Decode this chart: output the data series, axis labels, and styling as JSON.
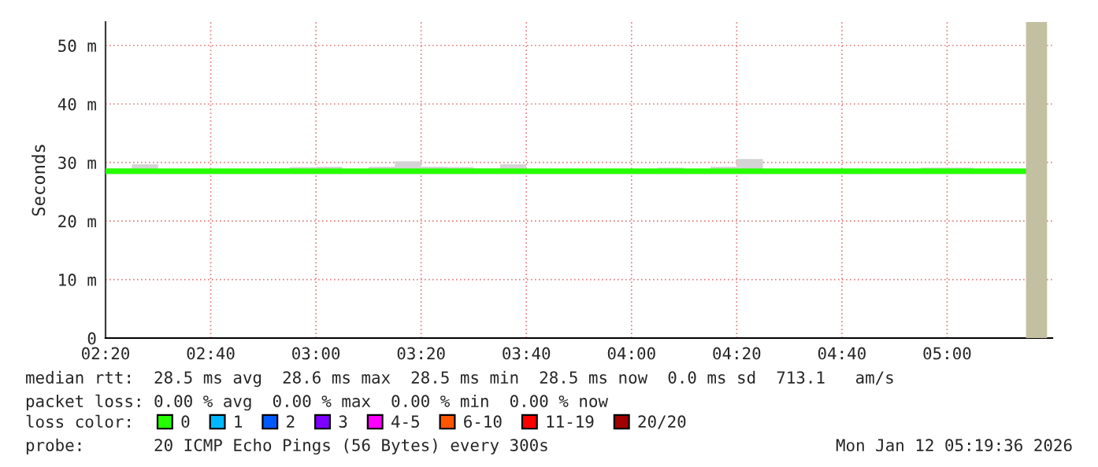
{
  "chart_data": {
    "type": "step",
    "ylabel": "Seconds",
    "x": [
      "2026-01-12T02:20",
      "2026-01-12T02:25",
      "2026-01-12T02:30",
      "2026-01-12T02:35",
      "2026-01-12T02:40",
      "2026-01-12T02:45",
      "2026-01-12T02:50",
      "2026-01-12T02:55",
      "2026-01-12T03:00",
      "2026-01-12T03:05",
      "2026-01-12T03:10",
      "2026-01-12T03:15",
      "2026-01-12T03:20",
      "2026-01-12T03:25",
      "2026-01-12T03:30",
      "2026-01-12T03:35",
      "2026-01-12T03:40",
      "2026-01-12T03:45",
      "2026-01-12T03:50",
      "2026-01-12T03:55",
      "2026-01-12T04:00",
      "2026-01-12T04:05",
      "2026-01-12T04:10",
      "2026-01-12T04:15",
      "2026-01-12T04:20",
      "2026-01-12T04:25",
      "2026-01-12T04:30",
      "2026-01-12T04:35",
      "2026-01-12T04:40",
      "2026-01-12T04:45",
      "2026-01-12T04:50",
      "2026-01-12T04:55",
      "2026-01-12T05:00",
      "2026-01-12T05:05",
      "2026-01-12T05:10",
      "2026-01-12T05:15"
    ],
    "series": [
      {
        "name": "0",
        "color": "#26ff00",
        "values": [
          28.5,
          28.5,
          28.5,
          28.5,
          28.5,
          28.5,
          28.5,
          28.5,
          28.5,
          28.5,
          28.5,
          28.5,
          28.5,
          28.5,
          28.5,
          28.5,
          28.5,
          28.5,
          28.5,
          28.5,
          28.5,
          28.5,
          28.5,
          28.5,
          28.5,
          28.5,
          28.5,
          28.5,
          28.5,
          28.5,
          28.5,
          28.5,
          28.5,
          28.5,
          28.5,
          28.5
        ],
        "lower": [
          28,
          28,
          28,
          28,
          28,
          28,
          28,
          28,
          28,
          28,
          28,
          28,
          28,
          28,
          28,
          28,
          28,
          28,
          28,
          28,
          28,
          28,
          28,
          28,
          28,
          28,
          28,
          28,
          28,
          28,
          28,
          28,
          28,
          28,
          28,
          28
        ],
        "upper": [
          29.0,
          29.7,
          28.8,
          28.8,
          28.8,
          28.8,
          29.0,
          29.2,
          29.3,
          28.8,
          29.3,
          30.2,
          29.3,
          29.2,
          29.0,
          29.7,
          28.8,
          28.8,
          28.8,
          28.8,
          28.8,
          29.1,
          28.8,
          29.3,
          30.6,
          28.8,
          28.8,
          28.8,
          28.9,
          28.8,
          28.8,
          29.1,
          29.1,
          28.8,
          28.8,
          28.8
        ]
      },
      {
        "name": "1",
        "color": "#00b8ff",
        "values": [
          null,
          null,
          null,
          null,
          null,
          null,
          null,
          null,
          null,
          null,
          null,
          null,
          null,
          null,
          null,
          null,
          null,
          null,
          null,
          null,
          null,
          null,
          null,
          null,
          null,
          null,
          null,
          null,
          null,
          null,
          null,
          null,
          null,
          null,
          null,
          null
        ]
      },
      {
        "name": "2",
        "color": "#0059ff",
        "values": [
          null,
          null,
          null,
          null,
          null,
          null,
          null,
          null,
          null,
          null,
          null,
          null,
          null,
          null,
          null,
          null,
          null,
          null,
          null,
          null,
          null,
          null,
          null,
          null,
          null,
          null,
          null,
          null,
          null,
          null,
          null,
          null,
          null,
          null,
          null,
          null
        ]
      },
      {
        "name": "3",
        "color": "#7e00ff",
        "values": [
          null,
          null,
          null,
          null,
          null,
          null,
          null,
          null,
          null,
          null,
          null,
          null,
          null,
          null,
          null,
          null,
          null,
          null,
          null,
          null,
          null,
          null,
          null,
          null,
          null,
          null,
          null,
          null,
          null,
          null,
          null,
          null,
          null,
          null,
          null,
          null
        ]
      },
      {
        "name": "4-5",
        "color": "#ff00ff",
        "values": [
          null,
          null,
          null,
          null,
          null,
          null,
          null,
          null,
          null,
          null,
          null,
          null,
          null,
          null,
          null,
          null,
          null,
          null,
          null,
          null,
          null,
          null,
          null,
          null,
          null,
          null,
          null,
          null,
          null,
          null,
          null,
          null,
          null,
          null,
          null,
          null
        ]
      },
      {
        "name": "6-10",
        "color": "#ff5500",
        "values": [
          null,
          null,
          null,
          null,
          null,
          null,
          null,
          null,
          null,
          null,
          null,
          null,
          null,
          null,
          null,
          null,
          null,
          null,
          null,
          null,
          null,
          null,
          null,
          null,
          null,
          null,
          null,
          null,
          null,
          null,
          null,
          null,
          null,
          null,
          null,
          null
        ]
      },
      {
        "name": "11-19",
        "color": "#ff0000",
        "values": [
          null,
          null,
          null,
          null,
          null,
          null,
          null,
          null,
          null,
          null,
          null,
          null,
          null,
          null,
          null,
          null,
          null,
          null,
          null,
          null,
          null,
          null,
          null,
          null,
          null,
          null,
          null,
          null,
          null,
          null,
          null,
          null,
          null,
          null,
          null,
          null
        ]
      },
      {
        "name": "20/20",
        "color": "#a10000",
        "values": [
          null,
          null,
          null,
          null,
          null,
          null,
          null,
          null,
          null,
          null,
          null,
          null,
          null,
          null,
          null,
          null,
          null,
          null,
          null,
          null,
          null,
          null,
          null,
          null,
          null,
          null,
          null,
          null,
          null,
          null,
          null,
          null,
          null,
          null,
          null,
          null
        ]
      }
    ],
    "xlim": [
      "2026-01-12T02:20",
      "2026-01-12T05:20"
    ],
    "xticks": [
      {
        "value": "2026-01-12T02:20",
        "label": "02:20"
      },
      {
        "value": "2026-01-12T02:40",
        "label": "02:40"
      },
      {
        "value": "2026-01-12T03:00",
        "label": "03:00"
      },
      {
        "value": "2026-01-12T03:20",
        "label": "03:20"
      },
      {
        "value": "2026-01-12T03:40",
        "label": "03:40"
      },
      {
        "value": "2026-01-12T04:00",
        "label": "04:00"
      },
      {
        "value": "2026-01-12T04:20",
        "label": "04:20"
      },
      {
        "value": "2026-01-12T04:40",
        "label": "04:40"
      },
      {
        "value": "2026-01-12T05:00",
        "label": "05:00"
      }
    ],
    "ylim": [
      0,
      54
    ],
    "yticks": [
      0,
      {
        "value": 10,
        "label": "10 m"
      },
      {
        "value": 20,
        "label": "20 m"
      },
      {
        "value": 30,
        "label": "30 m"
      },
      {
        "value": 40,
        "label": "40 m"
      },
      {
        "value": 50,
        "label": "50 m"
      }
    ],
    "bands": [
      {
        "axis": "x",
        "from": "2026-01-12T05:15",
        "to": "2026-01-12T05:19",
        "color": "#c2c0a0"
      }
    ],
    "grid": true,
    "legend": "bottom",
    "line_style": "solid",
    "annotations": [
      "median rtt:  28.5 ms avg  28.6 ms max  28.5 ms min  28.5 ms now  0.0 ms sd  713.1   am/s",
      "packet loss: 0.00 % avg  0.00 % max  0.00 % min  0.00 % now",
      "loss color:",
      "probe:       20 ICMP Echo Pings (56 Bytes) every 300s",
      "Mon Jan 12 05:19:36 2026"
    ]
  }
}
